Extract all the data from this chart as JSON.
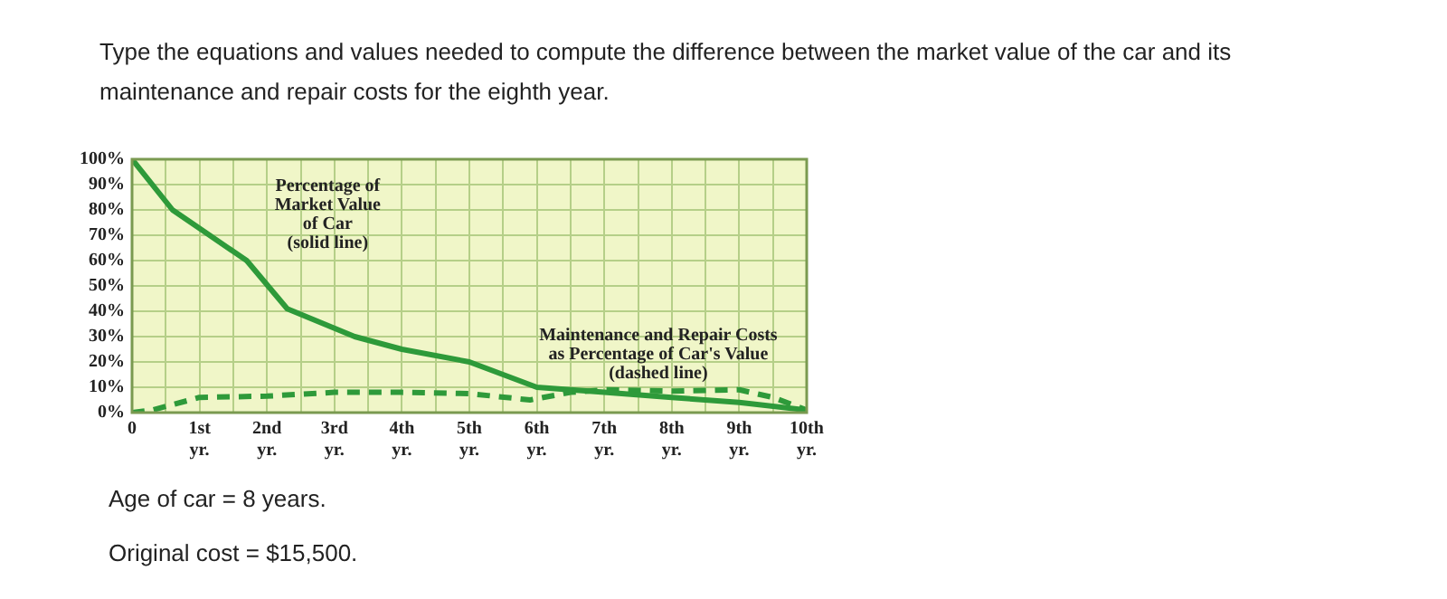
{
  "chart_data": {
    "type": "line",
    "title": "Type the equations and values needed to compute the difference between the market value of the car and its maintenance and repair costs for the eighth year.",
    "series": [
      {
        "color": "#2e9a3a",
        "line_style": "solid",
        "x": [
          0,
          0.6,
          1.7,
          2.3,
          3.3,
          4,
          5,
          6,
          7,
          8,
          9,
          10
        ],
        "values": [
          100,
          80,
          60,
          41,
          30,
          25,
          20,
          10,
          8,
          6,
          4,
          1
        ]
      },
      {
        "color": "#2e9a3a",
        "line_style": "dashed",
        "x": [
          0,
          0.3,
          1,
          2,
          3,
          4,
          5,
          5.9,
          6.5,
          7,
          8,
          9,
          9.5,
          10
        ],
        "values": [
          0,
          1,
          6,
          6.5,
          8,
          8,
          7.5,
          5,
          8,
          9,
          8.5,
          9,
          6,
          1
        ]
      }
    ],
    "xlim": [
      0,
      10
    ],
    "xticks": [
      {
        "value": 0,
        "label": "0"
      },
      {
        "value": 0.5,
        "label": null
      },
      {
        "value": 1,
        "label": "1st yr."
      },
      {
        "value": 1.5,
        "label": null
      },
      {
        "value": 2,
        "label": "2nd yr."
      },
      {
        "value": 2.5,
        "label": null
      },
      {
        "value": 3,
        "label": "3rd yr."
      },
      {
        "value": 3.5,
        "label": null
      },
      {
        "value": 4,
        "label": "4th yr."
      },
      {
        "value": 4.5,
        "label": null
      },
      {
        "value": 5,
        "label": "5th yr."
      },
      {
        "value": 5.5,
        "label": null
      },
      {
        "value": 6,
        "label": "6th yr."
      },
      {
        "value": 6.5,
        "label": null
      },
      {
        "value": 7,
        "label": "7th yr."
      },
      {
        "value": 7.5,
        "label": null
      },
      {
        "value": 8,
        "label": "8th yr."
      },
      {
        "value": 8.5,
        "label": null
      },
      {
        "value": 9,
        "label": "9th yr."
      },
      {
        "value": 9.5,
        "label": null
      },
      {
        "value": 10,
        "label": "10th yr."
      }
    ],
    "ylim": [
      0,
      100
    ],
    "yticks": [
      {
        "value": 0,
        "label": "0%"
      },
      {
        "value": 10,
        "label": "10%"
      },
      {
        "value": 20,
        "label": "20%"
      },
      {
        "value": 30,
        "label": "30%"
      },
      {
        "value": 40,
        "label": "40%"
      },
      {
        "value": 50,
        "label": "50%"
      },
      {
        "value": 60,
        "label": "60%"
      },
      {
        "value": 70,
        "label": "70%"
      },
      {
        "value": 80,
        "label": "80%"
      },
      {
        "value": 90,
        "label": "90%"
      },
      {
        "value": 100,
        "label": "100%"
      }
    ],
    "grid": true,
    "marker": "none",
    "annotations": [
      "Percentage of\nMarket Value\nof Car\n(solid line)",
      "Maintenance and Repair Costs\nas Percentage of Car's Value\n(dashed line)",
      "Age of car = 8 years.",
      "Original cost = $15,500."
    ]
  }
}
